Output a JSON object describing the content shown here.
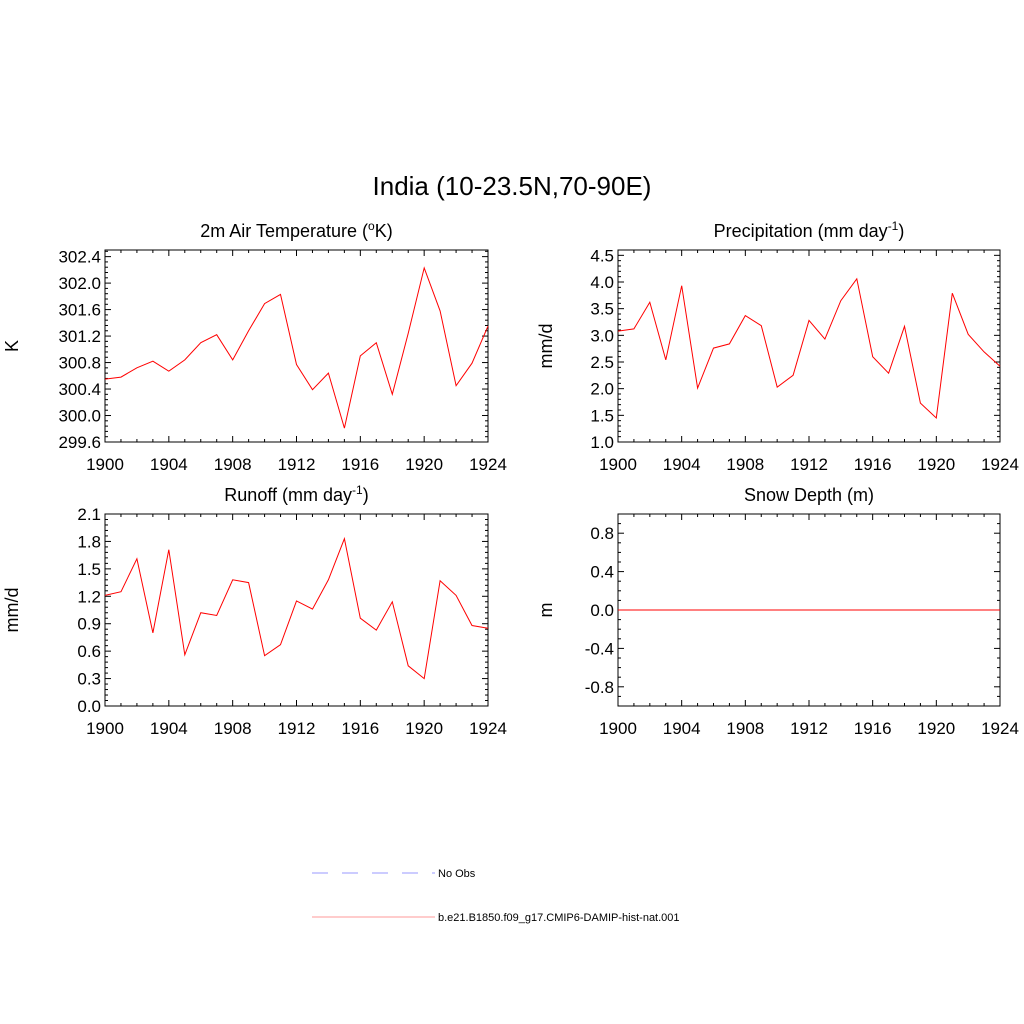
{
  "figure_title": "India (10-23.5N,70-90E)",
  "legend": [
    {
      "label": "No Obs",
      "color": "#9999ff",
      "style": "dashed"
    },
    {
      "label": "b.e21.B1850.f09_g17.CMIP6-DAMIP-hist-nat.001",
      "color": "#ff0000",
      "style": "solid"
    }
  ],
  "chart_data": [
    {
      "type": "line",
      "title": "2m Air Temperature (°K)",
      "title_base": "2m Air Temperature (",
      "title_sup": "o",
      "title_end": "K)",
      "ylabel": "K",
      "xlim": [
        1900,
        1924
      ],
      "ylim": [
        299.6,
        302.5
      ],
      "x_ticks": [
        "1900",
        "1904",
        "1908",
        "1912",
        "1916",
        "1920",
        "1924"
      ],
      "y_ticks": [
        "299.6",
        "300.0",
        "300.4",
        "300.8",
        "301.2",
        "301.6",
        "302.0",
        "302.4"
      ],
      "series": [
        {
          "color": "#ff0000",
          "x": [
            1900,
            1901,
            1902,
            1903,
            1904,
            1905,
            1906,
            1907,
            1908,
            1909,
            1910,
            1911,
            1912,
            1913,
            1914,
            1915,
            1916,
            1917,
            1918,
            1919,
            1920,
            1921,
            1922,
            1923,
            1924
          ],
          "values": [
            300.55,
            300.58,
            300.72,
            300.82,
            300.67,
            300.84,
            301.1,
            301.22,
            300.84,
            301.28,
            301.69,
            301.83,
            300.77,
            300.39,
            300.64,
            299.81,
            300.9,
            301.1,
            300.32,
            301.24,
            302.23,
            301.58,
            300.45,
            300.79,
            301.35
          ]
        }
      ]
    },
    {
      "type": "line",
      "title": "Precipitation (mm day-1)",
      "title_base": "Precipitation (mm day",
      "title_sup": "-1",
      "title_end": ")",
      "ylabel": "mm/d",
      "xlim": [
        1900,
        1924
      ],
      "ylim": [
        1.0,
        4.6
      ],
      "x_ticks": [
        "1900",
        "1904",
        "1908",
        "1912",
        "1916",
        "1920",
        "1924"
      ],
      "y_ticks": [
        "1.0",
        "1.5",
        "2.0",
        "2.5",
        "3.0",
        "3.5",
        "4.0",
        "4.5"
      ],
      "series": [
        {
          "color": "#ff0000",
          "x": [
            1900,
            1901,
            1902,
            1903,
            1904,
            1905,
            1906,
            1907,
            1908,
            1909,
            1910,
            1911,
            1912,
            1913,
            1914,
            1915,
            1916,
            1917,
            1918,
            1919,
            1920,
            1921,
            1922,
            1923,
            1924
          ],
          "values": [
            3.08,
            3.12,
            3.62,
            2.54,
            3.93,
            2.01,
            2.76,
            2.84,
            3.37,
            3.18,
            2.03,
            2.25,
            3.28,
            2.93,
            3.65,
            4.06,
            2.6,
            2.29,
            3.17,
            1.73,
            1.45,
            3.79,
            3.02,
            2.69,
            2.42
          ]
        }
      ]
    },
    {
      "type": "line",
      "title": "Runoff (mm day-1)",
      "title_base": "Runoff (mm day",
      "title_sup": "-1",
      "title_end": ")",
      "ylabel": "mm/d",
      "xlim": [
        1900,
        1924
      ],
      "ylim": [
        0.0,
        2.1
      ],
      "x_ticks": [
        "1900",
        "1904",
        "1908",
        "1912",
        "1916",
        "1920",
        "1924"
      ],
      "y_ticks": [
        "0.0",
        "0.3",
        "0.6",
        "0.9",
        "1.2",
        "1.5",
        "1.8",
        "2.1"
      ],
      "series": [
        {
          "color": "#ff0000",
          "x": [
            1900,
            1901,
            1902,
            1903,
            1904,
            1905,
            1906,
            1907,
            1908,
            1909,
            1910,
            1911,
            1912,
            1913,
            1914,
            1915,
            1916,
            1917,
            1918,
            1919,
            1920,
            1921,
            1922,
            1923,
            1924
          ],
          "values": [
            1.21,
            1.25,
            1.61,
            0.8,
            1.71,
            0.56,
            1.02,
            0.99,
            1.38,
            1.35,
            0.55,
            0.67,
            1.15,
            1.06,
            1.38,
            1.83,
            0.96,
            0.83,
            1.14,
            0.44,
            0.3,
            1.37,
            1.21,
            0.88,
            0.85
          ]
        }
      ]
    },
    {
      "type": "line",
      "title": "Snow Depth (m)",
      "title_base": "Snow Depth (m)",
      "title_sup": "",
      "title_end": "",
      "ylabel": "m",
      "xlim": [
        1900,
        1924
      ],
      "ylim": [
        -1.0,
        1.0
      ],
      "x_ticks": [
        "1900",
        "1904",
        "1908",
        "1912",
        "1916",
        "1920",
        "1924"
      ],
      "y_ticks": [
        "-0.8",
        "-0.4",
        "0.0",
        "0.4",
        "0.8"
      ],
      "series": [
        {
          "color": "#ff0000",
          "x": [
            1900,
            1901,
            1902,
            1903,
            1904,
            1905,
            1906,
            1907,
            1908,
            1909,
            1910,
            1911,
            1912,
            1913,
            1914,
            1915,
            1916,
            1917,
            1918,
            1919,
            1920,
            1921,
            1922,
            1923,
            1924
          ],
          "values": [
            0,
            0,
            0,
            0,
            0,
            0,
            0,
            0,
            0,
            0,
            0,
            0,
            0,
            0,
            0,
            0,
            0,
            0,
            0,
            0,
            0,
            0,
            0,
            0,
            0
          ]
        }
      ]
    }
  ]
}
